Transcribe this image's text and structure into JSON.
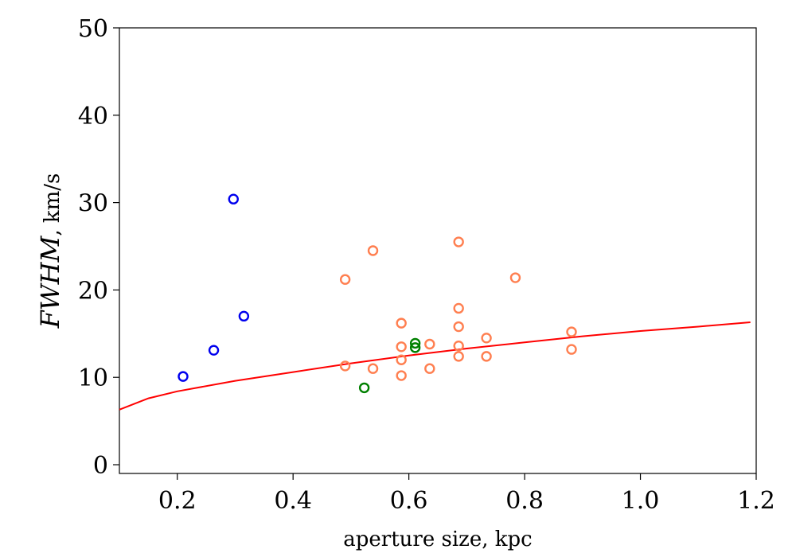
{
  "chart_data": {
    "type": "scatter",
    "xlabel": "aperture size, kpc",
    "ylabel_main": "FWHM",
    "ylabel_unit": ", km/s",
    "xlim": [
      0.1,
      1.2
    ],
    "ylim": [
      -1,
      50
    ],
    "xticks": [
      {
        "value": 0.2,
        "label": "0.2"
      },
      {
        "value": 0.4,
        "label": "0.4"
      },
      {
        "value": 0.6,
        "label": "0.6"
      },
      {
        "value": 0.8,
        "label": "0.8"
      },
      {
        "value": 1.0,
        "label": "1.0"
      },
      {
        "value": 1.2,
        "label": "1.2"
      }
    ],
    "yticks": [
      {
        "value": 0,
        "label": "0"
      },
      {
        "value": 10,
        "label": "10"
      },
      {
        "value": 20,
        "label": "20"
      },
      {
        "value": 30,
        "label": "30"
      },
      {
        "value": 40,
        "label": "40"
      },
      {
        "value": 50,
        "label": "50"
      }
    ],
    "grid": false,
    "legend": "none",
    "series": [
      {
        "color": "#0000ee",
        "points": [
          [
            0.21,
            10.1
          ],
          [
            0.263,
            13.1
          ],
          [
            0.297,
            30.4
          ],
          [
            0.315,
            17.0
          ]
        ]
      },
      {
        "color": "#ff7f50",
        "points": [
          [
            0.49,
            21.2
          ],
          [
            0.49,
            11.3
          ],
          [
            0.538,
            24.5
          ],
          [
            0.538,
            11.0
          ],
          [
            0.587,
            16.2
          ],
          [
            0.587,
            13.5
          ],
          [
            0.587,
            12.0
          ],
          [
            0.587,
            10.2
          ],
          [
            0.636,
            13.8
          ],
          [
            0.636,
            11.0
          ],
          [
            0.686,
            25.5
          ],
          [
            0.686,
            17.9
          ],
          [
            0.686,
            15.8
          ],
          [
            0.686,
            13.6
          ],
          [
            0.686,
            12.4
          ],
          [
            0.734,
            14.5
          ],
          [
            0.734,
            12.4
          ],
          [
            0.784,
            21.4
          ],
          [
            0.881,
            15.2
          ],
          [
            0.881,
            13.2
          ]
        ]
      },
      {
        "color": "#008000",
        "points": [
          [
            0.523,
            8.8
          ],
          [
            0.611,
            13.9
          ],
          [
            0.611,
            13.4
          ]
        ]
      }
    ],
    "fit_curve": {
      "color": "#ff0000",
      "points": [
        [
          0.1,
          6.3
        ],
        [
          0.15,
          7.6
        ],
        [
          0.2,
          8.4
        ],
        [
          0.3,
          9.6
        ],
        [
          0.4,
          10.6
        ],
        [
          0.5,
          11.6
        ],
        [
          0.6,
          12.5
        ],
        [
          0.7,
          13.3
        ],
        [
          0.8,
          14.0
        ],
        [
          0.9,
          14.7
        ],
        [
          1.0,
          15.3
        ],
        [
          1.1,
          15.8
        ],
        [
          1.19,
          16.3
        ]
      ]
    }
  }
}
